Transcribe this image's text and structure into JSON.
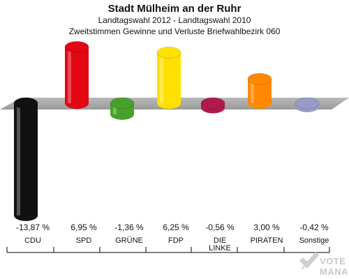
{
  "header": {
    "title": "Stadt Mülheim an der Ruhr",
    "subtitle": "Landtagswahl 2012 - Landtagswahl 2010",
    "subtitle2": "Zweitstimmen Gewinne und Verluste Briefwahlbezirk 060"
  },
  "watermark": {
    "line1": "VOTE",
    "line2": "MANAGER"
  },
  "chart_data": {
    "type": "bar",
    "title": "Stadt Mülheim an der Ruhr",
    "subtitle": "Landtagswahl 2012 - Landtagswahl 2010 / Zweitstimmen Gewinne und Verluste Briefwahlbezirk 060",
    "categories": [
      "CDU",
      "SPD",
      "GRÜNE",
      "FDP",
      "DIE LINKE",
      "PIRATEN",
      "Sonstige"
    ],
    "values": [
      -13.87,
      6.95,
      -1.36,
      6.25,
      -0.56,
      3.0,
      -0.42
    ],
    "value_labels": [
      "-13,87 %",
      "6,95 %",
      "-1,36 %",
      "6,25 %",
      "-0,56 %",
      "3,00 %",
      "-0,42 %"
    ],
    "category_labels": [
      [
        "CDU"
      ],
      [
        "SPD"
      ],
      [
        "GRÜNE"
      ],
      [
        "FDP"
      ],
      [
        "DIE",
        "LINKE"
      ],
      [
        "PIRATEN"
      ],
      [
        "Sonstige"
      ]
    ],
    "colors": [
      "#111111",
      "#e30613",
      "#46a12a",
      "#ffe000",
      "#b0194e",
      "#ff8800",
      "#9a9ac8"
    ],
    "unit": "%",
    "ylim": [
      -14,
      7
    ],
    "grid": false,
    "legend": "none"
  }
}
